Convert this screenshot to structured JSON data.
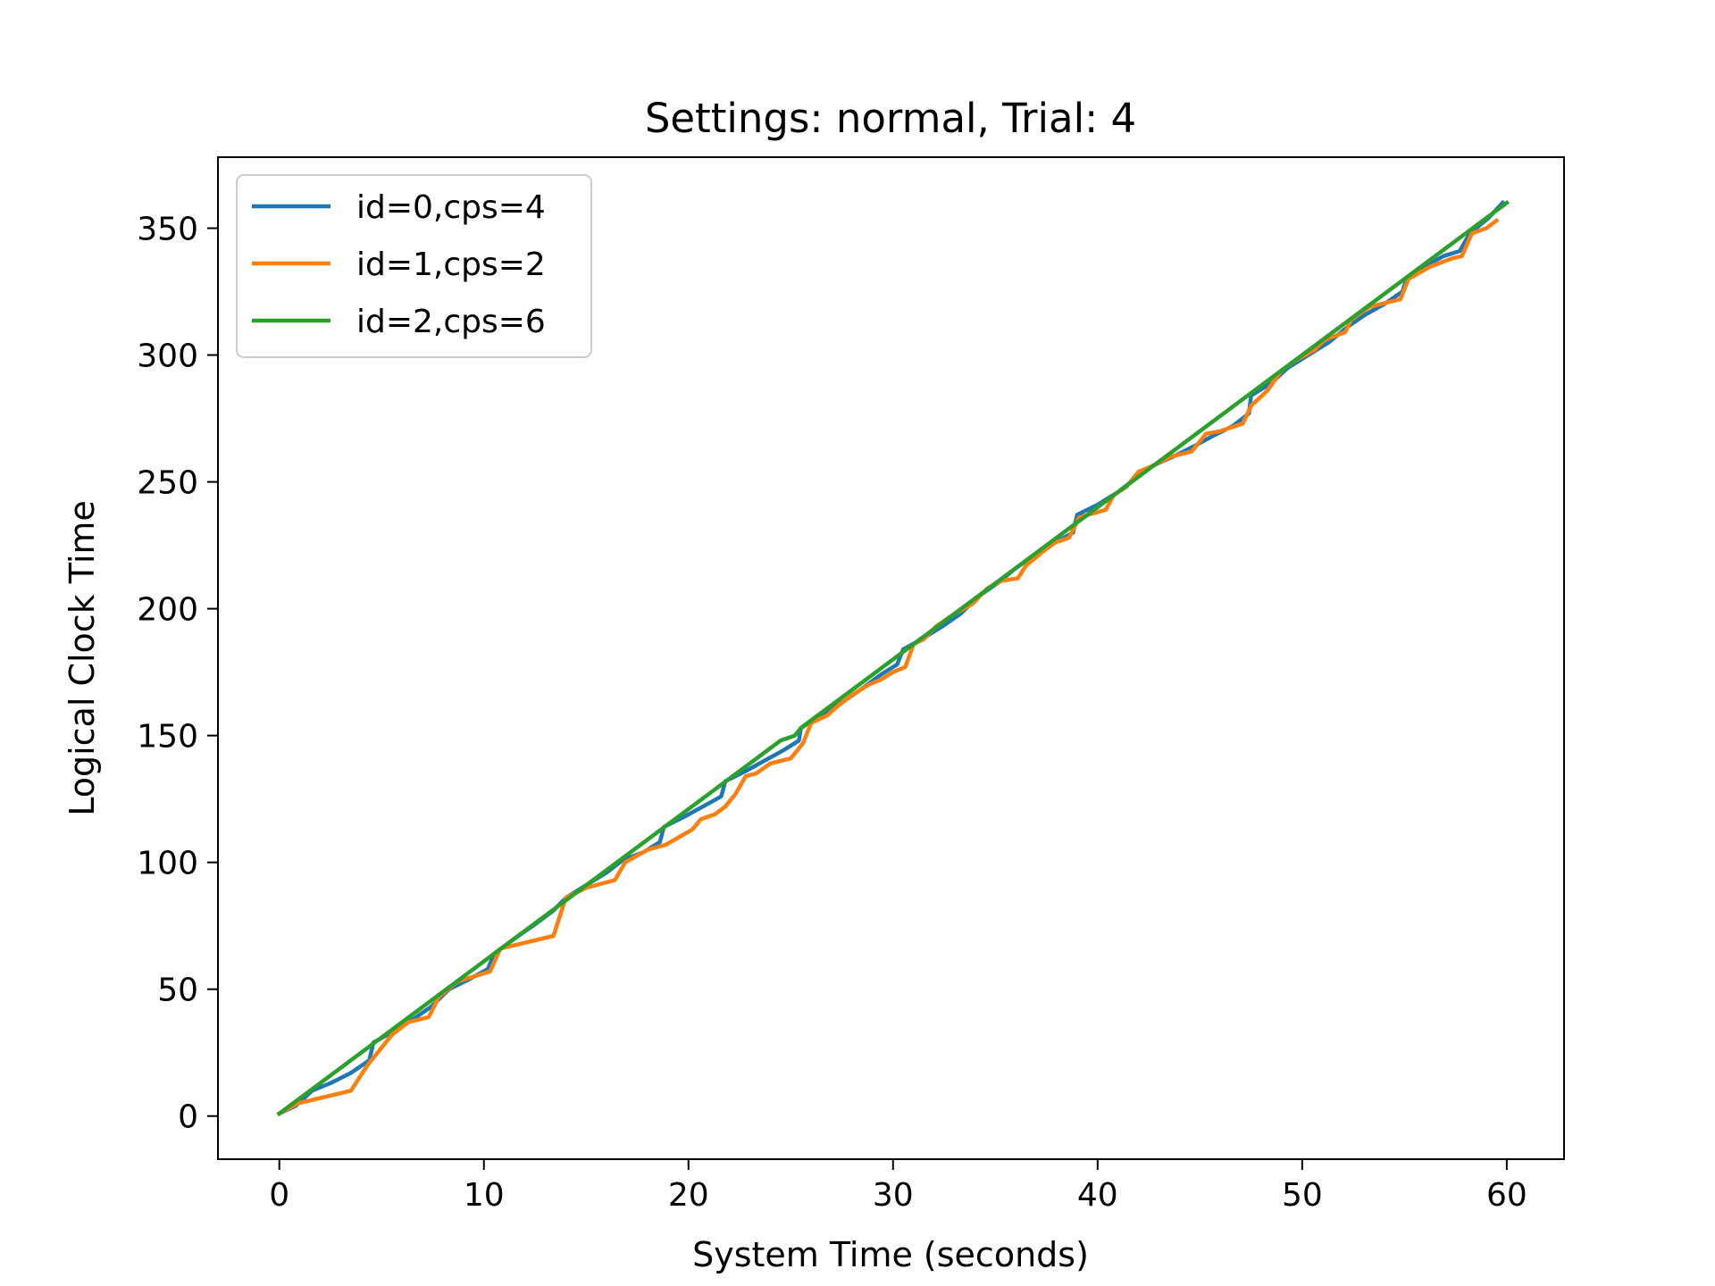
{
  "chart_data": {
    "type": "line",
    "title": "Settings: normal, Trial: 4",
    "xlabel": "System Time (seconds)",
    "ylabel": "Logical Clock Time",
    "xlim": [
      -3,
      62.8
    ],
    "ylim": [
      -17,
      378
    ],
    "xticks": [
      0,
      10,
      20,
      30,
      40,
      50,
      60
    ],
    "yticks": [
      0,
      50,
      100,
      150,
      200,
      250,
      300,
      350
    ],
    "grid": false,
    "legend_position": "top-left",
    "series": [
      {
        "name": "id=0,cps=4",
        "color": "#1f77b4",
        "points": [
          [
            0,
            1
          ],
          [
            0.8,
            4
          ],
          [
            1.6,
            10
          ],
          [
            2.5,
            13
          ],
          [
            3.5,
            17
          ],
          [
            4.4,
            22
          ],
          [
            4.6,
            29
          ],
          [
            5.5,
            33
          ],
          [
            6.5,
            38
          ],
          [
            7.4,
            43
          ],
          [
            8.3,
            50
          ],
          [
            9.3,
            54
          ],
          [
            10.2,
            58
          ],
          [
            10.5,
            64
          ],
          [
            11.5,
            70
          ],
          [
            12.4,
            75
          ],
          [
            13.4,
            81
          ],
          [
            14,
            86
          ],
          [
            15,
            91
          ],
          [
            16,
            96
          ],
          [
            16.8,
            101
          ],
          [
            17.8,
            104
          ],
          [
            18.6,
            108
          ],
          [
            18.8,
            114
          ],
          [
            19.8,
            118
          ],
          [
            20.7,
            122
          ],
          [
            21.6,
            126
          ],
          [
            21.8,
            132
          ],
          [
            22.8,
            136
          ],
          [
            23.7,
            140
          ],
          [
            24.6,
            144
          ],
          [
            25.4,
            148
          ],
          [
            25.5,
            153
          ],
          [
            26.5,
            158
          ],
          [
            27.5,
            163
          ],
          [
            28.4,
            168
          ],
          [
            29.4,
            174
          ],
          [
            30.2,
            178
          ],
          [
            30.5,
            184
          ],
          [
            31.4,
            188
          ],
          [
            32.4,
            193
          ],
          [
            33.3,
            198
          ],
          [
            34.2,
            205
          ],
          [
            35.1,
            210
          ],
          [
            36,
            216
          ],
          [
            36.9,
            221
          ],
          [
            37.9,
            226
          ],
          [
            38.8,
            230
          ],
          [
            39,
            237
          ],
          [
            40,
            241
          ],
          [
            41,
            246
          ],
          [
            41.8,
            251
          ],
          [
            42.6,
            256
          ],
          [
            43.7,
            260
          ],
          [
            44.7,
            264
          ],
          [
            45.6,
            268
          ],
          [
            46.6,
            272
          ],
          [
            47.4,
            277
          ],
          [
            47.5,
            284
          ],
          [
            48.5,
            289
          ],
          [
            49.3,
            295
          ],
          [
            50.3,
            300
          ],
          [
            51.3,
            305
          ],
          [
            52.2,
            311
          ],
          [
            53.1,
            316
          ],
          [
            54,
            320
          ],
          [
            54.9,
            325
          ],
          [
            55.1,
            330
          ],
          [
            56,
            335
          ],
          [
            56.9,
            339
          ],
          [
            57.7,
            341
          ],
          [
            58.2,
            348
          ],
          [
            59.1,
            354
          ],
          [
            59.8,
            360
          ]
        ]
      },
      {
        "name": "id=1,cps=2",
        "color": "#ff7f0e",
        "points": [
          [
            0,
            1
          ],
          [
            0.9,
            5
          ],
          [
            3.5,
            10
          ],
          [
            4.3,
            20
          ],
          [
            5.5,
            32
          ],
          [
            6.3,
            37
          ],
          [
            7.3,
            39
          ],
          [
            7.8,
            47
          ],
          [
            8.7,
            53
          ],
          [
            9.5,
            55
          ],
          [
            10.3,
            57
          ],
          [
            10.8,
            66
          ],
          [
            13.4,
            71
          ],
          [
            14,
            86
          ],
          [
            15,
            90
          ],
          [
            16.4,
            93
          ],
          [
            16.9,
            100
          ],
          [
            18,
            105
          ],
          [
            18.9,
            107
          ],
          [
            20.2,
            113
          ],
          [
            20.6,
            117
          ],
          [
            21.3,
            119
          ],
          [
            21.8,
            122
          ],
          [
            22.3,
            127
          ],
          [
            22.8,
            134
          ],
          [
            23.3,
            135
          ],
          [
            24,
            139
          ],
          [
            25,
            141
          ],
          [
            25.6,
            147
          ],
          [
            26,
            155
          ],
          [
            26.8,
            158
          ],
          [
            27.2,
            161
          ],
          [
            28,
            166
          ],
          [
            28.8,
            170
          ],
          [
            29.4,
            172
          ],
          [
            30,
            175
          ],
          [
            30.6,
            177
          ],
          [
            31,
            186
          ],
          [
            31.5,
            188
          ],
          [
            32.1,
            193
          ],
          [
            33,
            198
          ],
          [
            33.9,
            202
          ],
          [
            34.6,
            208
          ],
          [
            35.3,
            211
          ],
          [
            36.1,
            212
          ],
          [
            36.5,
            217
          ],
          [
            37.4,
            223
          ],
          [
            37.9,
            226
          ],
          [
            38.6,
            228
          ],
          [
            39.1,
            236
          ],
          [
            40.4,
            239
          ],
          [
            40.8,
            245
          ],
          [
            41.4,
            248
          ],
          [
            42,
            254
          ],
          [
            42.6,
            256
          ],
          [
            43.6,
            260
          ],
          [
            44.6,
            262
          ],
          [
            45.3,
            269
          ],
          [
            46,
            270
          ],
          [
            47.1,
            273
          ],
          [
            47.5,
            280
          ],
          [
            48.3,
            286
          ],
          [
            49,
            294
          ],
          [
            49.7,
            298
          ],
          [
            50.6,
            302
          ],
          [
            51.1,
            306
          ],
          [
            52.1,
            309
          ],
          [
            52.4,
            314
          ],
          [
            53.3,
            319
          ],
          [
            54.8,
            322
          ],
          [
            55.2,
            330
          ],
          [
            56.3,
            335
          ],
          [
            57.3,
            338
          ],
          [
            57.8,
            339
          ],
          [
            58.3,
            348
          ],
          [
            59,
            350
          ],
          [
            59.5,
            353
          ]
        ]
      },
      {
        "name": "id=2,cps=6",
        "color": "#2ca02c",
        "points": [
          [
            0,
            1
          ],
          [
            24.5,
            148
          ],
          [
            25.2,
            150
          ],
          [
            25.5,
            153
          ],
          [
            60,
            360
          ]
        ]
      }
    ]
  }
}
